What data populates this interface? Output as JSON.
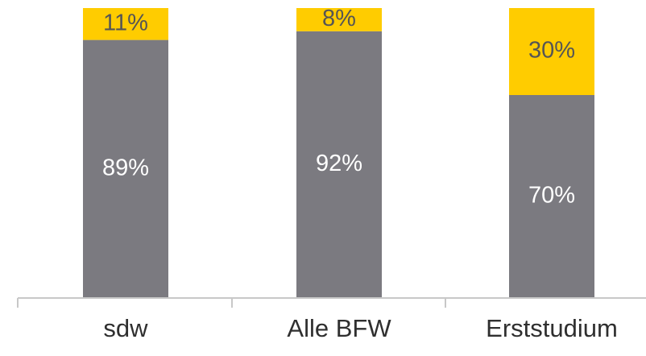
{
  "chart_data": {
    "type": "bar",
    "stacked": true,
    "percent_stacked": true,
    "categories": [
      "sdw",
      "Alle BFW",
      "Erststudium"
    ],
    "series": [
      {
        "values": [
          89,
          92,
          70
        ],
        "color": "#7b7a80",
        "label_color": "#ffffff"
      },
      {
        "values": [
          11,
          8,
          30
        ],
        "color": "#ffcc00",
        "label_color": "#555555"
      }
    ],
    "data_labels": [
      [
        "89%",
        "92%",
        "70%"
      ],
      [
        "11%",
        "8%",
        "30%"
      ]
    ],
    "ylim": [
      0,
      100
    ],
    "grid": false,
    "legend": "none",
    "title": "",
    "xlabel": "",
    "ylabel": ""
  }
}
